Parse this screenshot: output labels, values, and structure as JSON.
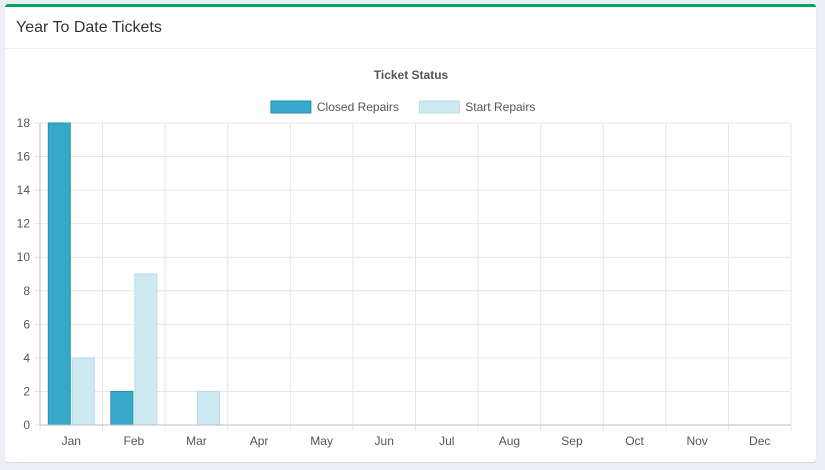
{
  "panel": {
    "title": "Year To Date Tickets"
  },
  "colors": {
    "accent": "#00a65a",
    "closed_fill": "#36a9cb",
    "closed_border": "#2a8fae",
    "start_fill": "#cdeaf3",
    "start_border": "#b7dcea",
    "grid": "#e6e6e6"
  },
  "chart_data": {
    "type": "bar",
    "title": "Ticket Status",
    "categories": [
      "Jan",
      "Feb",
      "Mar",
      "Apr",
      "May",
      "Jun",
      "Jul",
      "Aug",
      "Sep",
      "Oct",
      "Nov",
      "Dec"
    ],
    "series": [
      {
        "name": "Closed Repairs",
        "values": [
          18,
          2,
          0,
          0,
          0,
          0,
          0,
          0,
          0,
          0,
          0,
          0
        ]
      },
      {
        "name": "Start Repairs",
        "values": [
          4,
          9,
          2,
          0,
          0,
          0,
          0,
          0,
          0,
          0,
          0,
          0
        ]
      }
    ],
    "ylim": [
      0,
      18
    ],
    "yticks": [
      0,
      2,
      4,
      6,
      8,
      10,
      12,
      14,
      16,
      18
    ],
    "grid": true,
    "legend": "top-center"
  }
}
